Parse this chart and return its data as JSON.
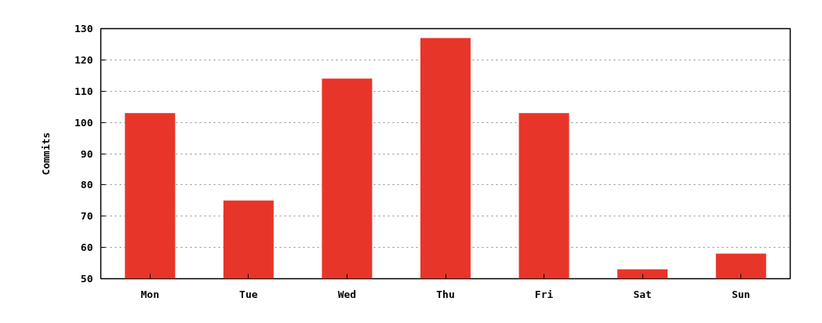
{
  "chart_data": {
    "type": "bar",
    "ylabel": "Commits",
    "categories": [
      "Mon",
      "Tue",
      "Wed",
      "Thu",
      "Fri",
      "Sat",
      "Sun"
    ],
    "values": [
      103,
      75,
      114,
      127,
      103,
      53,
      58
    ],
    "color": "#e8352a",
    "ylim": [
      50,
      130
    ],
    "yticks": [
      50,
      60,
      70,
      80,
      90,
      100,
      110,
      120,
      130
    ],
    "grid": "y"
  }
}
